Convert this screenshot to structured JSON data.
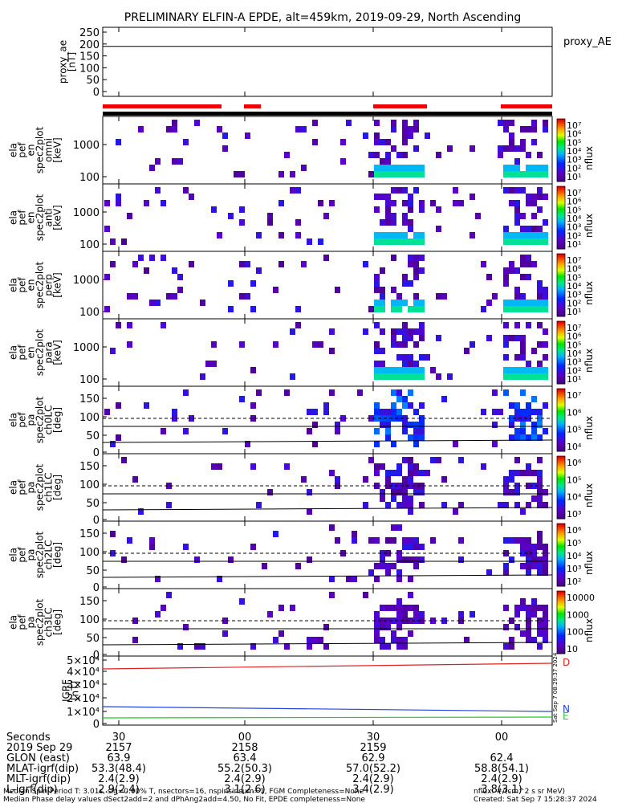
{
  "title": "PRELIMINARY ELFIN-A EPDE, alt=459km, 2019-09-29, North Ascending",
  "colors": {
    "ae_line": "#000000",
    "bar_red": "#ee0000",
    "bar_black": "#000000",
    "igrf_d": "#dd2222",
    "igrf_n": "#2244dd",
    "igrf_e": "#22cc22"
  },
  "panels": [
    {
      "id": "ae",
      "label": [
        "proxy_ae",
        "[nT]"
      ],
      "ticks": [
        "250",
        "200",
        "150",
        "100",
        "50",
        "0"
      ],
      "legend": "proxy_AE"
    },
    {
      "id": "spec-omni",
      "label": [
        "ela",
        "pef",
        "en",
        "spec2plot",
        "omni",
        "[keV]"
      ],
      "ticks": [
        "1000",
        "100"
      ],
      "cbar_label": "nflux",
      "cbar_ticks": [
        "10⁷",
        "10⁶",
        "10⁵",
        "10⁴",
        "10³",
        "10²",
        "10¹"
      ]
    },
    {
      "id": "spec-anti",
      "label": [
        "ela",
        "pef",
        "en",
        "spec2plot",
        "anti",
        "[keV]"
      ],
      "ticks": [
        "1000",
        "100"
      ],
      "cbar_label": "nflux",
      "cbar_ticks": [
        "10⁷",
        "10⁶",
        "10⁵",
        "10⁴",
        "10³",
        "10²",
        "10¹"
      ]
    },
    {
      "id": "spec-perp",
      "label": [
        "ela",
        "pef",
        "en",
        "spec2plot",
        "perp",
        "[keV]"
      ],
      "ticks": [
        "1000",
        "100"
      ],
      "cbar_label": "nflux",
      "cbar_ticks": [
        "10⁷",
        "10⁶",
        "10⁵",
        "10⁴",
        "10³",
        "10²",
        "10¹"
      ]
    },
    {
      "id": "spec-para",
      "label": [
        "ela",
        "pef",
        "en",
        "spec2plot",
        "para",
        "[keV]"
      ],
      "ticks": [
        "1000",
        "100"
      ],
      "cbar_label": "nflux",
      "cbar_ticks": [
        "10⁷",
        "10⁶",
        "10⁵",
        "10⁴",
        "10³",
        "10²",
        "10¹"
      ]
    },
    {
      "id": "pa-ch0",
      "label": [
        "ela",
        "pef",
        "pa",
        "spec2plot",
        "ch0LC",
        "[deg]"
      ],
      "ticks": [
        "150",
        "100",
        "50",
        "0"
      ],
      "cbar_label": "nflux",
      "cbar_ticks": [
        "10⁷",
        "10⁶",
        "10⁵",
        "10⁴"
      ]
    },
    {
      "id": "pa-ch1",
      "label": [
        "ela",
        "pef",
        "pa",
        "spec2plot",
        "ch1LC",
        "[deg]"
      ],
      "ticks": [
        "150",
        "100",
        "50",
        "0"
      ],
      "cbar_label": "nflux",
      "cbar_ticks": [
        "10⁶",
        "10⁵",
        "10⁴",
        "10³"
      ]
    },
    {
      "id": "pa-ch2",
      "label": [
        "ela",
        "pef",
        "pa",
        "spec2plot",
        "ch2LC",
        "[deg]"
      ],
      "ticks": [
        "150",
        "100",
        "50",
        "0"
      ],
      "cbar_label": "nflux",
      "cbar_ticks": [
        "10⁶",
        "10⁵",
        "10⁴",
        "10³",
        "10²"
      ]
    },
    {
      "id": "pa-ch3",
      "label": [
        "ela",
        "pef",
        "pa",
        "spec2plot",
        "ch3LC",
        "[deg]"
      ],
      "ticks": [
        "150",
        "100",
        "50",
        "0"
      ],
      "cbar_label": "nflux",
      "cbar_ticks": [
        "10000",
        "1000",
        "100",
        "10"
      ]
    },
    {
      "id": "igrf",
      "label": [
        "IGRF",
        "[nT]"
      ],
      "ticks": [
        "5×10⁴",
        "4×10⁴",
        "3×10⁴",
        "2×10⁴",
        "1×10⁴",
        "0"
      ],
      "legend_d": "D",
      "legend_n": "N",
      "legend_e": "E"
    }
  ],
  "side_stamp": "Sat Sep  7 08:29:37 2024",
  "footer": {
    "rows": [
      {
        "label": "Seconds",
        "values": [
          "30",
          "00",
          "30",
          "00"
        ]
      },
      {
        "label": "2019 Sep 29",
        "values": [
          "2157",
          "2158",
          "2159"
        ]
      },
      {
        "label": "GLON (east)",
        "values": [
          "63.9",
          "63.4",
          "62.9",
          "62.4"
        ]
      },
      {
        "label": "MLAT-igrf(dip)",
        "values": [
          "53.3(48.4)",
          "55.2(50.3)",
          "57.0(52.2)",
          "58.8(54.1)"
        ]
      },
      {
        "label": "MLT-igrf(dip)",
        "values": [
          "2.4(2.9)",
          "2.4(2.9)",
          "2.4(2.9)",
          "2.4(2.9)"
        ]
      },
      {
        "label": "L-igrf(dip)",
        "values": [
          "2.9(2.4)",
          "3.1(2.6)",
          "3.4(2.9)",
          "3.8(3.1)"
        ]
      }
    ],
    "note1": "Median Spin Period T: 3.01s, sig=0.00% T, nsectors=16, nspinsinsum=1, FGM Completeness=None",
    "note1_right": "nflux: #/(cm^2 s sr MeV)",
    "note2": "Median Phase delay values dSect2add=2 and dPhAng2add=4.50, No Fit, EPDE completeness=None",
    "note2_right": "Created: Sat Sep  7 15:28:37 2024"
  }
}
